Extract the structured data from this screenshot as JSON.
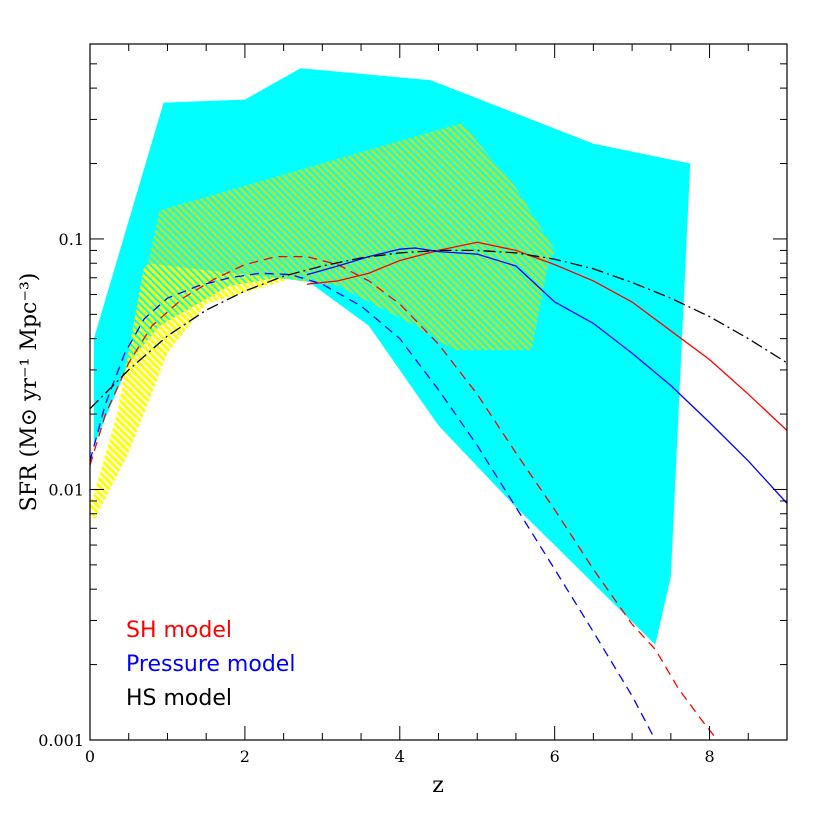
{
  "chart_data": {
    "type": "line",
    "title": "",
    "xlabel": "z",
    "ylabel": "SFR (M⊙ yr⁻¹ Mpc⁻³)",
    "xlim": [
      0,
      9
    ],
    "ylim": [
      0.001,
      0.6
    ],
    "y_scale": "log",
    "grid": false,
    "legend_placement": "bottom-left",
    "x_ticks": [
      {
        "value": 0,
        "label": "0"
      },
      {
        "value": 2,
        "label": "2"
      },
      {
        "value": 4,
        "label": "4"
      },
      {
        "value": 6,
        "label": "6"
      },
      {
        "value": 8,
        "label": "8"
      }
    ],
    "y_ticks": [
      {
        "value": 0.001,
        "label": "0.001"
      },
      {
        "value": 0.01,
        "label": "0.01"
      },
      {
        "value": 0.1,
        "label": "0.1"
      }
    ],
    "colors": {
      "sh": "#ff0000",
      "pressure": "#0000ff",
      "hs": "#000000",
      "cyan_band": "#00ffff",
      "yellow_band": "#ffff00",
      "green_band": "#a8e63c"
    },
    "bands": [
      {
        "id": "cyan",
        "color": "#00ffff",
        "points": [
          [
            0.05,
            0.04
          ],
          [
            0.95,
            0.35
          ],
          [
            2.0,
            0.36
          ],
          [
            2.72,
            0.48
          ],
          [
            4.4,
            0.43
          ],
          [
            6.5,
            0.24
          ],
          [
            7.75,
            0.2
          ],
          [
            7.5,
            0.0045
          ],
          [
            7.3,
            0.0024
          ],
          [
            6.0,
            0.006
          ],
          [
            5.5,
            0.0085
          ],
          [
            4.5,
            0.018
          ],
          [
            3.6,
            0.045
          ],
          [
            2.7,
            0.072
          ],
          [
            1.8,
            0.065
          ],
          [
            0.9,
            0.045
          ],
          [
            0.5,
            0.032
          ],
          [
            0.05,
            0.015
          ]
        ]
      },
      {
        "id": "yellow",
        "color": "#ffff00",
        "points": [
          [
            0.0,
            0.0085
          ],
          [
            0.35,
            0.02
          ],
          [
            0.7,
            0.078
          ],
          [
            1.3,
            0.095
          ],
          [
            2.0,
            0.088
          ],
          [
            3.0,
            0.08
          ],
          [
            2.5,
            0.068
          ],
          [
            1.5,
            0.055
          ],
          [
            1.0,
            0.035
          ],
          [
            0.5,
            0.014
          ],
          [
            0.05,
            0.0075
          ]
        ]
      },
      {
        "id": "green",
        "color": "#a8e63c",
        "points": [
          [
            0.9,
            0.13
          ],
          [
            4.8,
            0.29
          ],
          [
            5.5,
            0.16
          ],
          [
            6.0,
            0.09
          ],
          [
            5.9,
            0.075
          ],
          [
            5.7,
            0.036
          ],
          [
            4.7,
            0.036
          ],
          [
            4.2,
            0.045
          ],
          [
            3.2,
            0.065
          ],
          [
            2.4,
            0.07
          ],
          [
            1.5,
            0.075
          ],
          [
            0.75,
            0.08
          ]
        ]
      }
    ],
    "series": [
      {
        "id": "sh-solid",
        "color": "#ff0000",
        "dash": "solid",
        "points": [
          [
            2.8,
            0.066
          ],
          [
            3.2,
            0.068
          ],
          [
            3.6,
            0.073
          ],
          [
            4.0,
            0.082
          ],
          [
            4.5,
            0.09
          ],
          [
            5.0,
            0.097
          ],
          [
            5.5,
            0.09
          ],
          [
            6.0,
            0.079
          ],
          [
            6.5,
            0.068
          ],
          [
            7.0,
            0.056
          ],
          [
            7.5,
            0.043
          ],
          [
            8.0,
            0.033
          ],
          [
            8.5,
            0.024
          ],
          [
            9.0,
            0.0172
          ]
        ]
      },
      {
        "id": "sh-dashed",
        "color": "#ff0000",
        "dash": "dashed",
        "points": [
          [
            0.0,
            0.0125
          ],
          [
            0.2,
            0.02
          ],
          [
            0.5,
            0.032
          ],
          [
            0.8,
            0.045
          ],
          [
            1.2,
            0.058
          ],
          [
            1.6,
            0.069
          ],
          [
            2.0,
            0.079
          ],
          [
            2.4,
            0.085
          ],
          [
            2.8,
            0.085
          ],
          [
            3.2,
            0.079
          ],
          [
            3.6,
            0.068
          ],
          [
            4.0,
            0.055
          ],
          [
            4.5,
            0.038
          ],
          [
            5.0,
            0.024
          ],
          [
            5.5,
            0.014
          ],
          [
            6.0,
            0.0083
          ],
          [
            6.5,
            0.0048
          ],
          [
            7.0,
            0.0029
          ],
          [
            7.3,
            0.0023
          ],
          [
            7.6,
            0.0016
          ],
          [
            7.9,
            0.0012
          ],
          [
            8.1,
            0.001
          ]
        ]
      },
      {
        "id": "pressure-solid",
        "color": "#0000ff",
        "dash": "solid",
        "points": [
          [
            2.8,
            0.072
          ],
          [
            3.2,
            0.078
          ],
          [
            3.6,
            0.085
          ],
          [
            4.0,
            0.091
          ],
          [
            4.2,
            0.092
          ],
          [
            4.5,
            0.089
          ],
          [
            5.0,
            0.087
          ],
          [
            5.5,
            0.078
          ],
          [
            6.0,
            0.056
          ],
          [
            6.5,
            0.046
          ],
          [
            7.0,
            0.035
          ],
          [
            7.5,
            0.026
          ],
          [
            8.0,
            0.0185
          ],
          [
            8.5,
            0.013
          ],
          [
            9.0,
            0.0088
          ]
        ]
      },
      {
        "id": "pressure-dashed",
        "color": "#0000ff",
        "dash": "dashed",
        "points": [
          [
            0.0,
            0.013
          ],
          [
            0.2,
            0.022
          ],
          [
            0.45,
            0.035
          ],
          [
            0.7,
            0.048
          ],
          [
            1.0,
            0.058
          ],
          [
            1.4,
            0.065
          ],
          [
            1.8,
            0.07
          ],
          [
            2.2,
            0.073
          ],
          [
            2.6,
            0.072
          ],
          [
            3.0,
            0.066
          ],
          [
            3.5,
            0.054
          ],
          [
            4.0,
            0.04
          ],
          [
            4.5,
            0.025
          ],
          [
            5.0,
            0.015
          ],
          [
            5.5,
            0.0085
          ],
          [
            6.0,
            0.0048
          ],
          [
            6.5,
            0.0027
          ],
          [
            7.0,
            0.0015
          ],
          [
            7.3,
            0.001
          ]
        ]
      },
      {
        "id": "hs",
        "color": "#000000",
        "dash": "dashdot",
        "points": [
          [
            0.0,
            0.021
          ],
          [
            0.5,
            0.03
          ],
          [
            1.0,
            0.041
          ],
          [
            1.5,
            0.052
          ],
          [
            2.0,
            0.062
          ],
          [
            2.5,
            0.071
          ],
          [
            3.0,
            0.078
          ],
          [
            3.5,
            0.084
          ],
          [
            4.0,
            0.088
          ],
          [
            4.5,
            0.09
          ],
          [
            5.0,
            0.09
          ],
          [
            5.5,
            0.088
          ],
          [
            6.0,
            0.083
          ],
          [
            6.5,
            0.076
          ],
          [
            7.0,
            0.067
          ],
          [
            7.5,
            0.058
          ],
          [
            8.0,
            0.049
          ],
          [
            8.5,
            0.04
          ],
          [
            9.0,
            0.032
          ]
        ]
      }
    ],
    "legend": [
      {
        "name": "SH model",
        "color": "#ff0000"
      },
      {
        "name": "Pressure model",
        "color": "#0000ff"
      },
      {
        "name": "HS model",
        "color": "#000000"
      }
    ]
  }
}
